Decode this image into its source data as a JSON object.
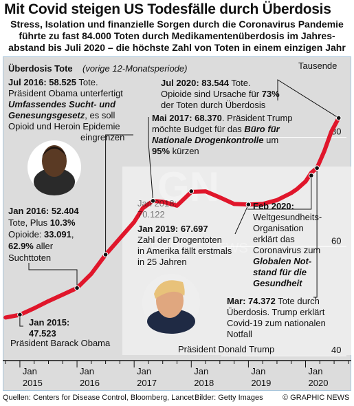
{
  "header": {
    "title": "Mit Covid steigen US Todesfälle durch Überdosis",
    "subtitle_lines": [
      "Stress, Isolation und finanzielle Sorgen durch die Coronavirus Pandemie",
      "führte zu fast 84.000 Toten durch Medikamentenüberdosis im Jahres-",
      "abstand bis Juli 2020 – die höchste Zahl von Toten in einem einzigen Jahr"
    ]
  },
  "chart_data": {
    "type": "line",
    "title": "Überdosis Tote",
    "title_note": "(vorige 12-Monatsperiode)",
    "unit": "Tausende",
    "ylim": [
      40,
      87
    ],
    "yticks": [
      40,
      60,
      80
    ],
    "xlim": [
      2014.7,
      2020.8
    ],
    "xticks": [
      "Jan 2015",
      "Jan 2016",
      "Jan 2017",
      "Jan 2018",
      "Jan 2019",
      "Jan 2020"
    ],
    "series": [
      {
        "x": [
          2014.75,
          2015.0,
          2015.25,
          2015.5,
          2015.75,
          2016.0,
          2016.25,
          2016.5,
          2016.75,
          2017.0,
          2017.15,
          2017.33,
          2017.5,
          2017.75,
          2018.0,
          2018.25,
          2018.5,
          2018.75,
          2019.0,
          2019.25,
          2019.5,
          2019.75,
          2019.85,
          2020.0,
          2020.1,
          2020.2,
          2020.33,
          2020.45,
          2020.58
        ],
        "y": [
          47.0,
          47.5,
          48.7,
          50.0,
          51.2,
          52.4,
          55.0,
          58.5,
          61.5,
          64.5,
          67.0,
          68.37,
          68.2,
          67.5,
          70.0,
          70.1,
          69.0,
          67.8,
          67.7,
          67.8,
          68.5,
          69.8,
          70.5,
          71.9,
          73.5,
          74.37,
          77.5,
          81.0,
          83.544
        ]
      }
    ],
    "events": [
      {
        "date": "Jan 2015",
        "value": "47.523",
        "x": 2015.0,
        "y": 47.523
      },
      {
        "date": "Jan 2016",
        "value": "52.404",
        "x": 2016.0,
        "y": 52.404
      },
      {
        "date": "Jul 2016",
        "value": "58.525",
        "x": 2016.5,
        "y": 58.525
      },
      {
        "date": "Mai 2017",
        "value": "68.370",
        "x": 2017.33,
        "y": 68.37
      },
      {
        "date": "Jan 2018",
        "value": "70.122",
        "x": 2018.0,
        "y": 70.122
      },
      {
        "date": "Jan 2019",
        "value": "67.697",
        "x": 2019.0,
        "y": 67.697
      },
      {
        "date": "Feb 2020",
        "value": "",
        "x": 2020.1,
        "y": 73.0
      },
      {
        "date": "Mar",
        "value": "74.372",
        "x": 2020.2,
        "y": 74.372
      },
      {
        "date": "Jul 2020",
        "value": "83.544",
        "x": 2020.58,
        "y": 83.544
      }
    ],
    "eras": [
      {
        "label": "Präsident Barack Obama",
        "start": 2014.7,
        "end": 2017.05
      },
      {
        "label": "Präsident Donald Trump",
        "start": 2017.05,
        "end": 2020.8
      }
    ]
  },
  "annotations": {
    "jan2015": {
      "head": "Jan 2015:",
      "val": "47.523"
    },
    "jan2016": {
      "line1": "Jan 2016: 52.404",
      "line2_a": "Tote, Plus ",
      "line2_b": "10.3%",
      "line3_a": "Opioide: ",
      "line3_b": "33.091",
      "line3_c": ",",
      "line4_a": "62.9%",
      "line4_b": " aller",
      "line5": "Suchttoten"
    },
    "jul2016": {
      "line1_a": "Jul 2016: 58.525",
      "line1_b": " Tote.",
      "line2": "Präsident Obama unterfertigt",
      "line3": "Umfassendes Sucht- und",
      "line4_a": "Genesungsgesetz",
      "line4_b": ", es soll",
      "line5": "Opioid und Heroin Epidemie",
      "line6": "eingrenzen"
    },
    "mai2017": {
      "line1_a": "Mai 2017: 68.370",
      "line1_b": ". Präsident Trump",
      "line2_a": "möchte Budget für das ",
      "line2_b": "Büro für",
      "line3_a": "Nationale Drogenkontrolle",
      "line3_b": " um",
      "line4_a": "95%",
      "line4_b": " kürzen"
    },
    "jul2020": {
      "line1_a": "Jul 2020: 83.544",
      "line1_b": " Tote.",
      "line2_a": "Opioide sind Ursache für ",
      "line2_b": "73%",
      "line3": "der Toten durch Überdosis"
    },
    "jan2018": {
      "line1": "Jan 2018:",
      "line2": "70.122"
    },
    "jan2019": {
      "line1": "Jan 2019: 67.697",
      "line2": "Zahl der Drogentoten",
      "line3": "in Amerika fällt erstmals",
      "line4": "in 25 Jahren"
    },
    "feb2020": {
      "line1": "Feb 2020:",
      "line2": "Weltgesundheits-",
      "line3": "Organisation",
      "line4": "erklärt das",
      "line5": "Coronavirus zum",
      "line6": "Globalen Not-",
      "line7": "stand für die",
      "line8": "Gesundheit"
    },
    "mar2020": {
      "line1_a": "Mar: 74.372",
      "line1_b": " Tote durch",
      "line2": "Überdosis. Trump erklärt",
      "line3": "Covid-19 zum nationalen",
      "line4": "Notfall"
    }
  },
  "watermark": "GRAPHIC NEWS",
  "colors": {
    "line": "#e0162b",
    "background": "#dcdcdc",
    "trump_panel": "#ececec",
    "panel_border": "#a8c6dc"
  },
  "footer": {
    "source": "Quellen: Centers for Disease Control, Bloomberg, Lancet",
    "credit": "Bilder: Getty Images",
    "copyright": "© GRAPHIC NEWS"
  }
}
